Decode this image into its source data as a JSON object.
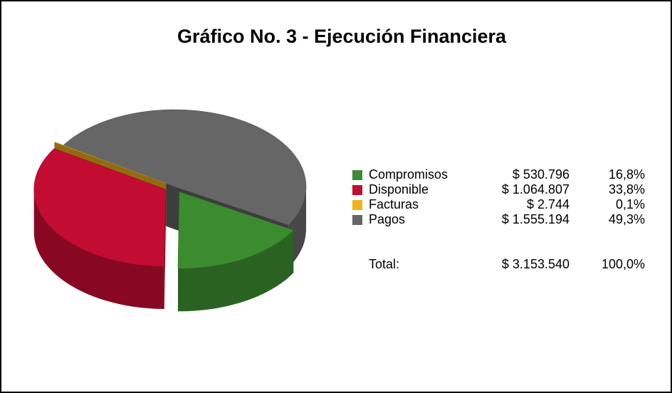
{
  "chart_data": {
    "type": "pie3d",
    "title": "Gráfico No. 3 - Ejecución Financiera",
    "categories": [
      "Compromisos",
      "Disponible",
      "Facturas",
      "Pagos"
    ],
    "values": [
      530796,
      1064807,
      2744,
      1555194
    ],
    "value_labels": [
      "$ 530.796",
      "$ 1.064.807",
      "$ 2.744",
      "$ 1.555.194"
    ],
    "percentages": [
      16.8,
      33.8,
      0.1,
      49.3
    ],
    "percentage_labels": [
      "16,8%",
      "33,8%",
      "0,1%",
      "49,3%"
    ],
    "colors": [
      "#3b8c2f",
      "#c20c32",
      "#f2b21e",
      "#666666"
    ],
    "total_label": "Total:",
    "total": 3153540,
    "total_value_label": "$ 3.153.540",
    "total_percentage": 100,
    "total_percentage_label": "100,0%"
  }
}
